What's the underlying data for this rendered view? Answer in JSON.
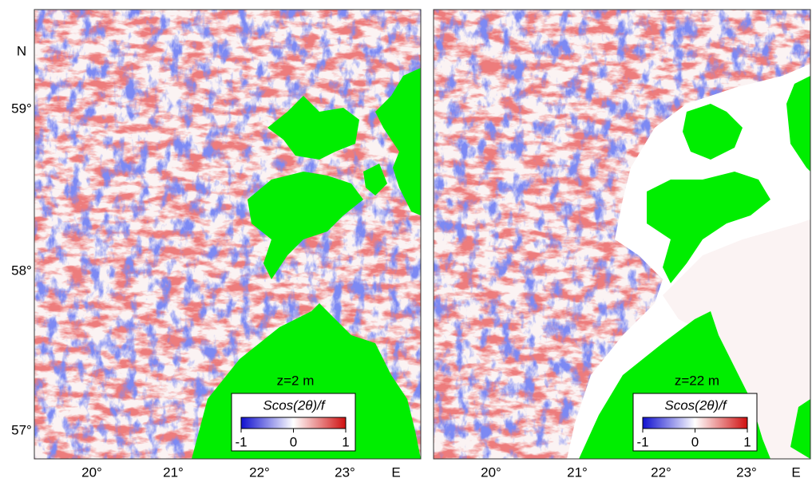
{
  "lat_labels": [
    "N",
    "59°",
    "58°",
    "57°"
  ],
  "panels": [
    {
      "lon_labels": [
        "20°",
        "21°",
        "22°",
        "23°",
        "E"
      ],
      "label": "z=2 m",
      "colorbar": {
        "title": "Scos(2θ)/f",
        "ticks": [
          "-1",
          "0",
          "1"
        ]
      }
    },
    {
      "lon_labels": [
        "20°",
        "21°",
        "22°",
        "23°",
        "E"
      ],
      "label": "z=22 m",
      "colorbar": {
        "title": "Scos(2θ)/f",
        "ticks": [
          "-1",
          "0",
          "1"
        ]
      }
    }
  ]
}
